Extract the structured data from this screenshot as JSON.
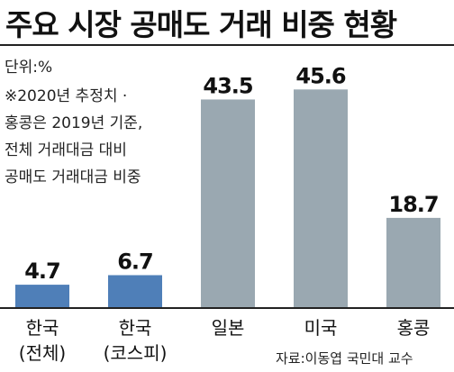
{
  "chart_data": {
    "type": "bar",
    "title": "주요 시장 공매도 거래 비중 현황",
    "unit": "단위:%",
    "notes": [
      "※2020년 추정치 ·",
      "홍콩은 2019년 기준,",
      "전체 거래대금 대비",
      "공매도 거래대금 비중"
    ],
    "categories": [
      [
        "한국",
        "(전체)"
      ],
      [
        "한국",
        "(코스피)"
      ],
      [
        "일본"
      ],
      [
        "미국"
      ],
      [
        "홍콩"
      ]
    ],
    "values": [
      4.7,
      6.7,
      43.5,
      45.6,
      18.7
    ],
    "value_labels": [
      "4.7",
      "6.7",
      "43.5",
      "45.6",
      "18.7"
    ],
    "colors": [
      "#4f7fb8",
      "#4f7fb8",
      "#9aa8b1",
      "#9aa8b1",
      "#9aa8b1"
    ],
    "ylim": [
      0,
      50
    ],
    "xlabel": "",
    "ylabel": "",
    "grid": false,
    "source": "자료:이동엽 국민대 교수"
  }
}
